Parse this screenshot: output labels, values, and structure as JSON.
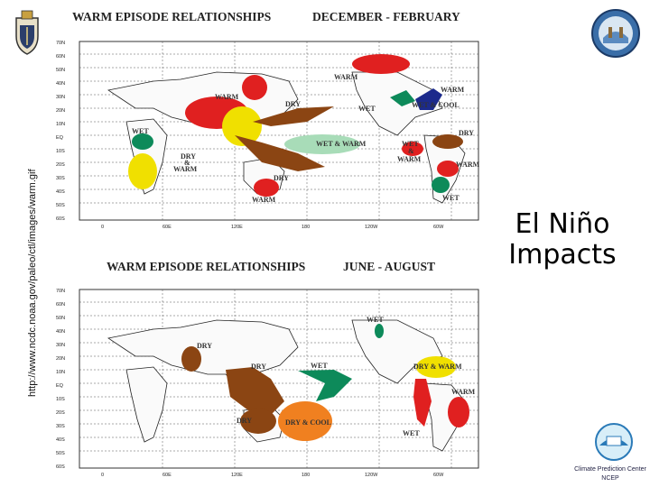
{
  "side_url": "http://www.ncdc.noaa.gov/paleo/ctl/images/warm.gif",
  "slide_title": "El Niño Impacts",
  "maps": [
    {
      "title": "WARM EPISODE RELATIONSHIPS",
      "season": "DECEMBER - FEBRUARY",
      "lat_ticks": [
        "70N",
        "60N",
        "50N",
        "40N",
        "30N",
        "20N",
        "10N",
        "EQ",
        "10S",
        "20S",
        "30S",
        "40S",
        "50S",
        "60S"
      ],
      "lon_ticks": [
        "0",
        "60E",
        "120E",
        "180",
        "120W",
        "60W"
      ],
      "labels": {
        "warm_npac": "WARM",
        "warm_asia": "WARM",
        "dry_indo": "DRY",
        "warm_us": "WARM",
        "wet_cool": "WET & COOL",
        "wet_us": "WET",
        "dry_nsa": "DRY",
        "wet_africa": "WET",
        "wet_warm_pac": "WET & WARM",
        "wet_sa": "WET",
        "and_sa": "&",
        "warm_sa": "WARM",
        "dry_safr": "DRY",
        "and_safr": "&",
        "warm_safr": "WARM",
        "warm_ssa": "WARM",
        "dry_aus": "DRY",
        "warm_aus": "WARM",
        "wet_ssa": "WET"
      }
    },
    {
      "title": "WARM EPISODE RELATIONSHIPS",
      "season": "JUNE - AUGUST",
      "lat_ticks": [
        "70N",
        "60N",
        "50N",
        "40N",
        "30N",
        "20N",
        "10N",
        "EQ",
        "10S",
        "20S",
        "30S",
        "40S",
        "50S",
        "60S"
      ],
      "lon_ticks": [
        "0",
        "60E",
        "120E",
        "180",
        "120W",
        "60W"
      ],
      "labels": {
        "wet_na": "WET",
        "dry_india": "DRY",
        "dry_indo": "DRY",
        "wet_pac": "WET",
        "dry_warm": "DRY & WARM",
        "warm_sa": "WARM",
        "dry_aus": "DRY",
        "dry_cool": "DRY & COOL",
        "wet_ssa": "WET"
      }
    }
  ],
  "logos": {
    "left_emblem": "naval-academy-crest",
    "right_emblem": "noaa-seal",
    "cpc_text": "Climate Prediction Center",
    "cpc_sub": "NCEP"
  }
}
